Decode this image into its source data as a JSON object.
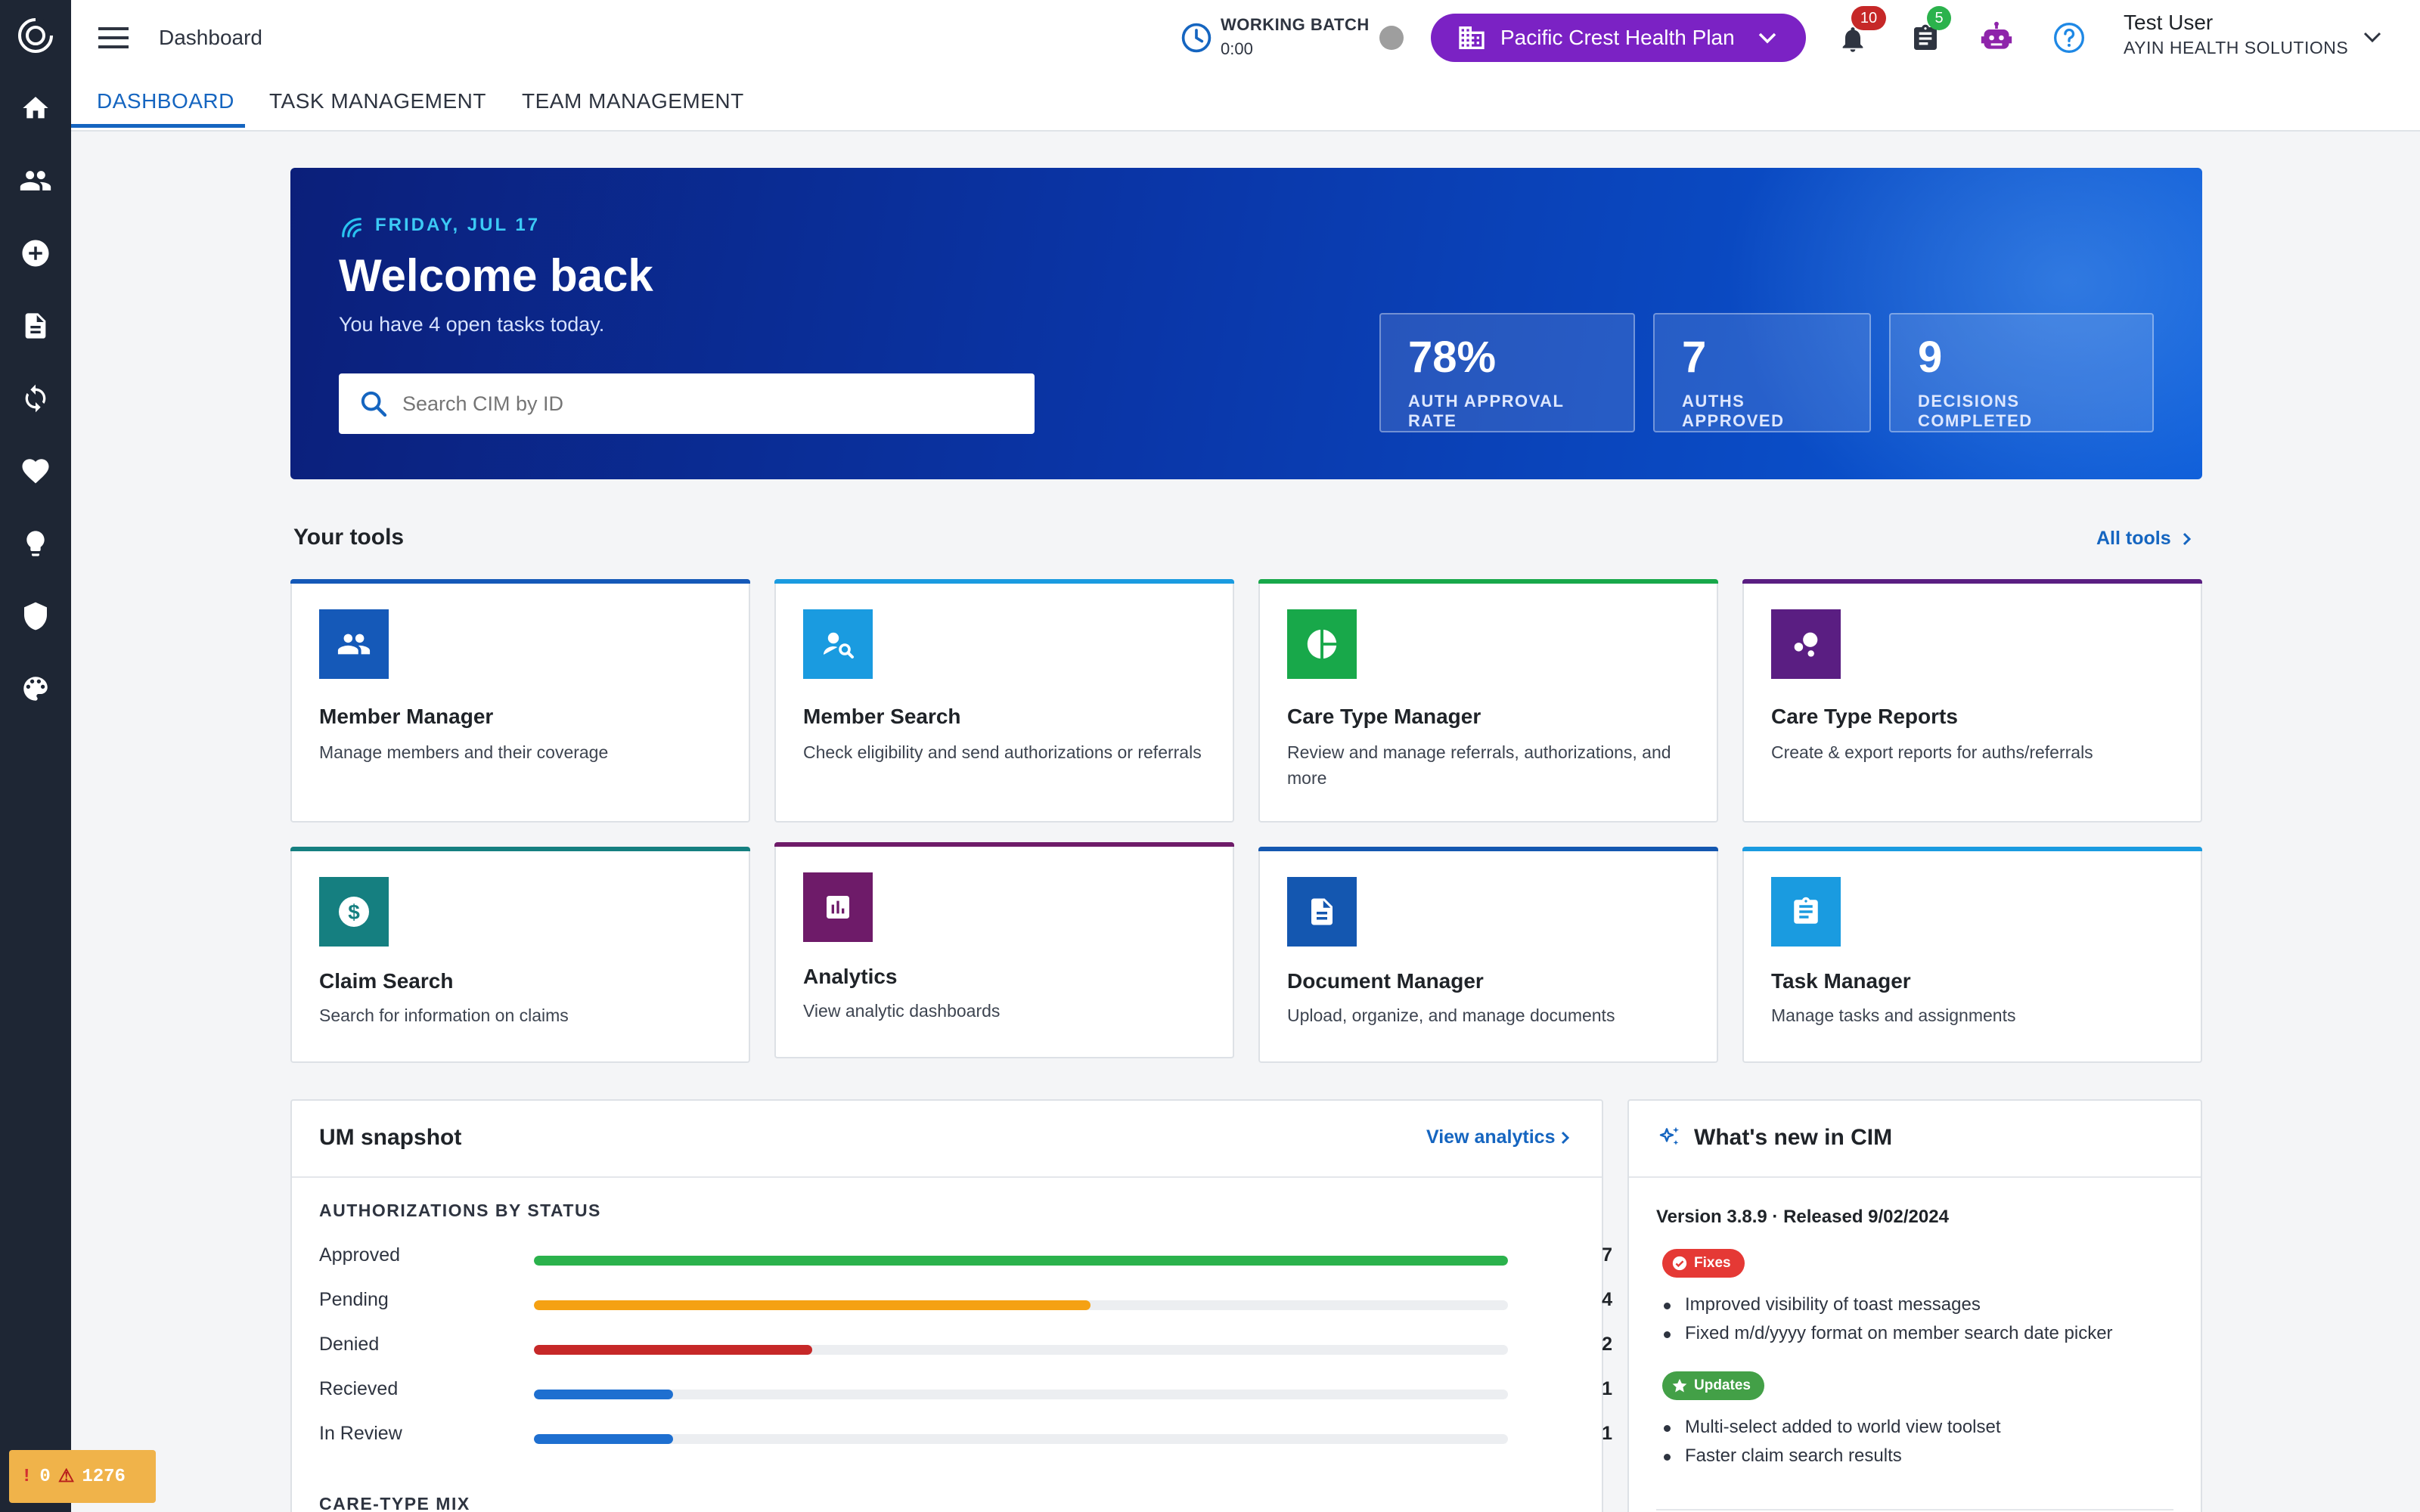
{
  "header": {
    "title": "Dashboard",
    "working_batch_label": "WORKING BATCH",
    "working_batch_time": "0:00",
    "org_name": "Pacific Crest Health Plan",
    "notifications_count": "10",
    "tasks_count": "5",
    "user_name": "Test User",
    "user_org": "AYIN HEALTH SOLUTIONS"
  },
  "tabs": [
    {
      "label": "DASHBOARD",
      "active": true
    },
    {
      "label": "TASK MANAGEMENT",
      "active": false
    },
    {
      "label": "TEAM MANAGEMENT",
      "active": false
    }
  ],
  "hero": {
    "date": "FRIDAY, JUL 17",
    "title": "Welcome back",
    "subtitle": "You have 4 open tasks today.",
    "search_placeholder": "Search CIM by ID",
    "stats": [
      {
        "value": "78%",
        "label": "AUTH APPROVAL RATE"
      },
      {
        "value": "7",
        "label": "AUTHS APPROVED"
      },
      {
        "value": "9",
        "label": "DECISIONS COMPLETED"
      }
    ]
  },
  "tools": {
    "heading": "Your tools",
    "all_link": "All tools",
    "items": [
      {
        "title": "Member Manager",
        "desc": "Manage members and their coverage",
        "color": "#1559b8",
        "bar": "#1559b8"
      },
      {
        "title": "Member Search",
        "desc": "Check eligibility and send authorizations or referrals",
        "color": "#1a9be0",
        "bar": "#1a9be0"
      },
      {
        "title": "Care Type Manager",
        "desc": "Review and manage referrals, authorizations, and more",
        "color": "#18a84a",
        "bar": "#18a84a"
      },
      {
        "title": "Care Type Reports",
        "desc": "Create & export reports for auths/referrals",
        "color": "#5a1e82",
        "bar": "#5a1e82"
      },
      {
        "title": "Claim Search",
        "desc": "Search for information on claims",
        "color": "#157f80",
        "bar": "#157f80"
      },
      {
        "title": "Analytics",
        "desc": "View analytic dashboards",
        "color": "#6e1b69",
        "bar": "#6e1b69"
      },
      {
        "title": "Document Manager",
        "desc": "Upload, organize, and manage documents",
        "color": "#1457b0",
        "bar": "#1457b0"
      },
      {
        "title": "Task Manager",
        "desc": "Manage tasks and assignments",
        "color": "#1a9be0",
        "bar": "#1a9be0"
      }
    ]
  },
  "um": {
    "title": "UM snapshot",
    "link": "View analytics",
    "section": "AUTHORIZATIONS BY STATUS",
    "section2": "CARE-TYPE MIX",
    "rows": [
      {
        "label": "Approved",
        "value": 7,
        "color": "#2bb24c"
      },
      {
        "label": "Pending",
        "value": 4,
        "color": "#f5a113"
      },
      {
        "label": "Denied",
        "value": 2,
        "color": "#c62828"
      },
      {
        "label": "Recieved",
        "value": 1,
        "color": "#1e6fd0"
      },
      {
        "label": "In Review",
        "value": 1,
        "color": "#1e6fd0"
      }
    ]
  },
  "whats_new": {
    "title": "What's new in CIM",
    "version": "Version 3.8.9 · Released 9/02/2024",
    "fixes_label": "Fixes",
    "fixes": [
      "Improved visibility of toast messages",
      "Fixed m/d/yyyy format on member search date picker"
    ],
    "updates_label": "Updates",
    "updates": [
      "Multi-select added to world view toolset",
      "Faster claim search results"
    ]
  },
  "debug": {
    "errors": "0",
    "warnings": "1276"
  }
}
